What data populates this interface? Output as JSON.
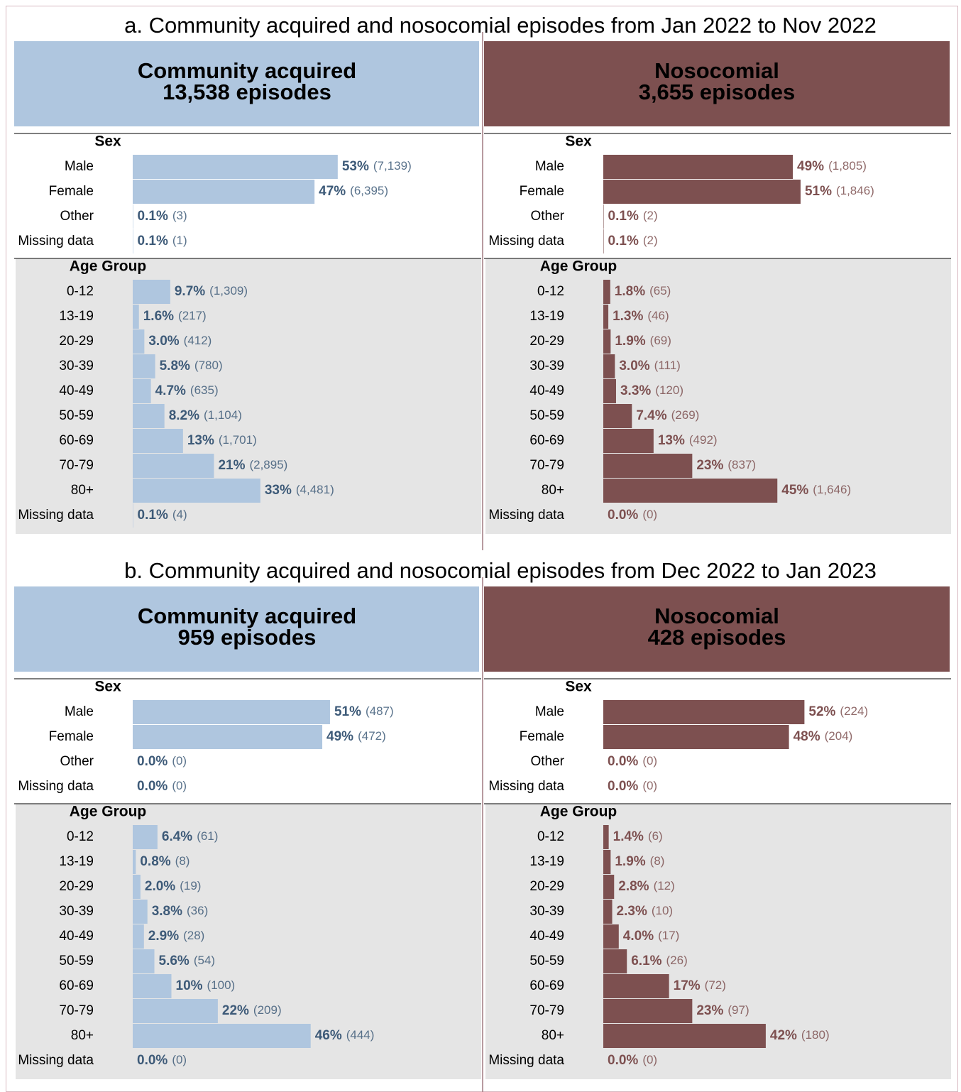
{
  "panels": [
    {
      "title": "a. Community acquired and nosocomial episodes from Jan 2022 to Nov 2022",
      "charts": [
        {
          "type": "bar",
          "title": "Community acquired",
          "subtitle": "13,538 episodes",
          "color": "#afc6df",
          "label_color": "#3d5a78",
          "xlim": [
            0,
            100
          ],
          "sections": [
            {
              "name": "Sex",
              "categories": [
                "Male",
                "Female",
                "Other",
                "Missing data"
              ],
              "values": [
                53,
                47,
                0.1,
                0.1
              ],
              "value_labels": [
                "53%",
                "47%",
                "0.1%",
                "0.1%"
              ],
              "counts": [
                "(7,139)",
                "(6,395)",
                "(3)",
                "(1)"
              ]
            },
            {
              "name": "Age Group",
              "categories": [
                "0-12",
                "13-19",
                "20-29",
                "30-39",
                "40-49",
                "50-59",
                "60-69",
                "70-79",
                "80+",
                "Missing data"
              ],
              "values": [
                9.7,
                1.6,
                3.0,
                5.8,
                4.7,
                8.2,
                13,
                21,
                33,
                0.1
              ],
              "value_labels": [
                "9.7%",
                "1.6%",
                "3.0%",
                "5.8%",
                "4.7%",
                "8.2%",
                "13%",
                "21%",
                "33%",
                "0.1%"
              ],
              "counts": [
                "(1,309)",
                "(217)",
                "(412)",
                "(780)",
                "(635)",
                "(1,104)",
                "(1,701)",
                "(2,895)",
                "(4,481)",
                "(4)"
              ]
            }
          ]
        },
        {
          "type": "bar",
          "title": "Nosocomial",
          "subtitle": "3,655 episodes",
          "color": "#7d5050",
          "label_color": "#7d5050",
          "xlim": [
            0,
            100
          ],
          "sections": [
            {
              "name": "Sex",
              "categories": [
                "Male",
                "Female",
                "Other",
                "Missing data"
              ],
              "values": [
                49,
                51,
                0.1,
                0.1
              ],
              "value_labels": [
                "49%",
                "51%",
                "0.1%",
                "0.1%"
              ],
              "counts": [
                "(1,805)",
                "(1,846)",
                "(2)",
                "(2)"
              ]
            },
            {
              "name": "Age Group",
              "categories": [
                "0-12",
                "13-19",
                "20-29",
                "30-39",
                "40-49",
                "50-59",
                "60-69",
                "70-79",
                "80+",
                "Missing data"
              ],
              "values": [
                1.8,
                1.3,
                1.9,
                3.0,
                3.3,
                7.4,
                13,
                23,
                45,
                0.0
              ],
              "value_labels": [
                "1.8%",
                "1.3%",
                "1.9%",
                "3.0%",
                "3.3%",
                "7.4%",
                "13%",
                "23%",
                "45%",
                "0.0%"
              ],
              "counts": [
                "(65)",
                "(46)",
                "(69)",
                "(111)",
                "(120)",
                "(269)",
                "(492)",
                "(837)",
                "(1,646)",
                "(0)"
              ]
            }
          ]
        }
      ]
    },
    {
      "title": "b. Community acquired and nosocomial episodes from Dec 2022 to Jan 2023",
      "charts": [
        {
          "type": "bar",
          "title": "Community acquired",
          "subtitle": "959 episodes",
          "color": "#afc6df",
          "label_color": "#3d5a78",
          "xlim": [
            0,
            100
          ],
          "sections": [
            {
              "name": "Sex",
              "categories": [
                "Male",
                "Female",
                "Other",
                "Missing data"
              ],
              "values": [
                51,
                49,
                0.0,
                0.0
              ],
              "value_labels": [
                "51%",
                "49%",
                "0.0%",
                "0.0%"
              ],
              "counts": [
                "(487)",
                "(472)",
                "(0)",
                "(0)"
              ]
            },
            {
              "name": "Age Group",
              "categories": [
                "0-12",
                "13-19",
                "20-29",
                "30-39",
                "40-49",
                "50-59",
                "60-69",
                "70-79",
                "80+",
                "Missing data"
              ],
              "values": [
                6.4,
                0.8,
                2.0,
                3.8,
                2.9,
                5.6,
                10,
                22,
                46,
                0.0
              ],
              "value_labels": [
                "6.4%",
                "0.8%",
                "2.0%",
                "3.8%",
                "2.9%",
                "5.6%",
                "10%",
                "22%",
                "46%",
                "0.0%"
              ],
              "counts": [
                "(61)",
                "(8)",
                "(19)",
                "(36)",
                "(28)",
                "(54)",
                "(100)",
                "(209)",
                "(444)",
                "(0)"
              ]
            }
          ]
        },
        {
          "type": "bar",
          "title": "Nosocomial",
          "subtitle": "428 episodes",
          "color": "#7d5050",
          "label_color": "#7d5050",
          "xlim": [
            0,
            100
          ],
          "sections": [
            {
              "name": "Sex",
              "categories": [
                "Male",
                "Female",
                "Other",
                "Missing data"
              ],
              "values": [
                52,
                48,
                0.0,
                0.0
              ],
              "value_labels": [
                "52%",
                "48%",
                "0.0%",
                "0.0%"
              ],
              "counts": [
                "(224)",
                "(204)",
                "(0)",
                "(0)"
              ]
            },
            {
              "name": "Age Group",
              "categories": [
                "0-12",
                "13-19",
                "20-29",
                "30-39",
                "40-49",
                "50-59",
                "60-69",
                "70-79",
                "80+",
                "Missing data"
              ],
              "values": [
                1.4,
                1.9,
                2.8,
                2.3,
                4.0,
                6.1,
                17,
                23,
                42,
                0.0
              ],
              "value_labels": [
                "1.4%",
                "1.9%",
                "2.8%",
                "2.3%",
                "4.0%",
                "6.1%",
                "17%",
                "23%",
                "42%",
                "0.0%"
              ],
              "counts": [
                "(6)",
                "(8)",
                "(12)",
                "(10)",
                "(17)",
                "(26)",
                "(72)",
                "(97)",
                "(180)",
                "(0)"
              ]
            }
          ]
        }
      ]
    }
  ]
}
